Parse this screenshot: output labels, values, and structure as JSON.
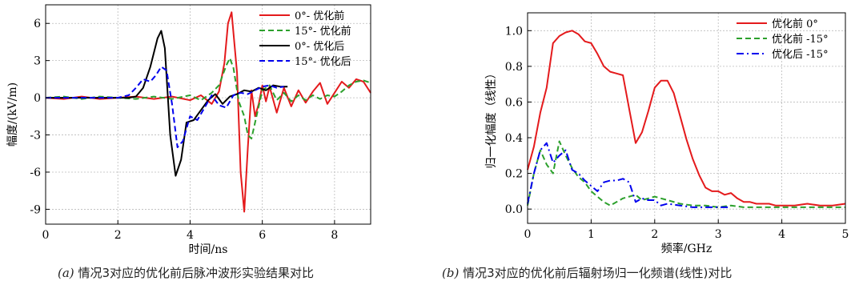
{
  "captions": {
    "a": {
      "tag": "(a)",
      "text": "情况3对应的优化前后脉冲波形实验结果对比"
    },
    "b": {
      "tag": "(b)",
      "text": "情况3对应的优化前后辐射场归一化频谱(线性)对比"
    }
  },
  "chart_data": [
    {
      "type": "line",
      "xlabel": "时间/ns",
      "ylabel": "幅度/(kV/m)",
      "xlim": [
        0,
        9
      ],
      "ylim": [
        -10.2,
        7.5
      ],
      "xticks": [
        0,
        2,
        4,
        6,
        8
      ],
      "yticks": [
        -9,
        -6,
        -3,
        0,
        3,
        6
      ],
      "grid": true,
      "legend": "top-right",
      "series": [
        {
          "name": "0°- 优化前",
          "color": "#e41a1c",
          "style": "solid",
          "x": [
            0,
            0.5,
            1.0,
            1.5,
            2.0,
            2.5,
            3.0,
            3.5,
            4.0,
            4.3,
            4.6,
            4.8,
            4.95,
            5.05,
            5.15,
            5.3,
            5.4,
            5.5,
            5.6,
            5.7,
            5.8,
            5.9,
            6.0,
            6.1,
            6.2,
            6.4,
            6.6,
            6.8,
            7.0,
            7.2,
            7.4,
            7.6,
            7.8,
            8.0,
            8.2,
            8.4,
            8.6,
            8.8,
            9.0
          ],
          "y": [
            0,
            -0.1,
            0.1,
            -0.1,
            0,
            0.1,
            -0.1,
            0.1,
            -0.2,
            0.2,
            -0.5,
            0.5,
            2.8,
            6.0,
            6.9,
            2.0,
            -6.0,
            -9.2,
            -4.0,
            0.6,
            -1.5,
            -0.5,
            1.0,
            -0.3,
            0.9,
            -1.2,
            0.8,
            -0.7,
            0.6,
            -0.4,
            0.5,
            1.2,
            -0.5,
            0.4,
            1.3,
            0.8,
            1.5,
            1.3,
            0.4
          ]
        },
        {
          "name": "15°- 优化前",
          "color": "#2ca02c",
          "style": "dashed",
          "x": [
            0,
            0.5,
            1.0,
            1.5,
            2.0,
            2.5,
            3.0,
            3.5,
            4.0,
            4.3,
            4.6,
            4.8,
            5.0,
            5.1,
            5.2,
            5.35,
            5.5,
            5.6,
            5.7,
            5.8,
            6.0,
            6.2,
            6.4,
            6.6,
            6.8,
            7.0,
            7.2,
            7.4,
            7.6,
            7.8,
            8.0,
            8.2,
            8.4,
            8.6,
            8.8,
            9.0
          ],
          "y": [
            0,
            0.1,
            -0.1,
            0.1,
            0,
            -0.1,
            0.1,
            -0.1,
            0.2,
            -0.2,
            0.4,
            1.0,
            2.6,
            3.2,
            2.4,
            -0.3,
            -1.5,
            -3.0,
            -3.3,
            -2.0,
            0.6,
            1.0,
            -0.2,
            0.4,
            -0.3,
            0.2,
            -0.2,
            0.2,
            -0.1,
            0.2,
            0.1,
            0.5,
            1.0,
            1.3,
            1.4,
            1.2
          ]
        },
        {
          "name": "0°- 优化后",
          "color": "#000000",
          "style": "solid",
          "x": [
            0,
            0.5,
            1.0,
            1.5,
            2.0,
            2.3,
            2.5,
            2.7,
            2.9,
            3.1,
            3.2,
            3.3,
            3.45,
            3.6,
            3.75,
            3.9,
            4.1,
            4.3,
            4.5,
            4.7,
            4.9,
            5.1,
            5.3,
            5.5,
            5.7,
            5.9,
            6.1,
            6.3,
            6.5,
            6.7
          ],
          "y": [
            0,
            0,
            0,
            0,
            0,
            0,
            0.1,
            0.8,
            2.5,
            4.8,
            5.4,
            4.0,
            -3.0,
            -6.3,
            -5.0,
            -2.0,
            -1.8,
            -1.0,
            -0.2,
            0.3,
            -0.5,
            0.1,
            0.3,
            0.6,
            0.5,
            0.8,
            0.6,
            1.0,
            0.9,
            0.9
          ]
        },
        {
          "name": "15°- 优化后",
          "color": "#0000ee",
          "style": "dashed",
          "x": [
            0,
            0.5,
            1.0,
            1.5,
            2.0,
            2.3,
            2.5,
            2.7,
            2.9,
            3.05,
            3.2,
            3.35,
            3.5,
            3.65,
            3.8,
            4.0,
            4.2,
            4.4,
            4.6,
            4.8,
            5.0,
            5.2,
            5.4,
            5.6,
            5.8,
            6.0,
            6.2,
            6.4,
            6.6
          ],
          "y": [
            0,
            0,
            0,
            0,
            0,
            0.2,
            0.8,
            1.5,
            1.3,
            1.8,
            2.5,
            2.2,
            -0.5,
            -4.0,
            -3.5,
            -1.5,
            -1.8,
            -0.8,
            0.2,
            -0.6,
            -0.8,
            0.2,
            0.4,
            0.3,
            0.6,
            0.9,
            1.0,
            0.8,
            0.9
          ]
        }
      ]
    },
    {
      "type": "line",
      "xlabel": "频率/GHz",
      "ylabel": "归一化幅度（线性）",
      "xlim": [
        0,
        5
      ],
      "ylim": [
        -0.08,
        1.1
      ],
      "xticks": [
        0,
        1,
        2,
        3,
        4,
        5
      ],
      "yticks": [
        0.0,
        0.2,
        0.4,
        0.6,
        0.8,
        1.0
      ],
      "grid": true,
      "legend": "top-right",
      "series": [
        {
          "name": "优化前 0°",
          "color": "#e41a1c",
          "style": "solid",
          "x": [
            0,
            0.1,
            0.2,
            0.3,
            0.4,
            0.5,
            0.6,
            0.7,
            0.8,
            0.9,
            1.0,
            1.1,
            1.2,
            1.3,
            1.4,
            1.5,
            1.6,
            1.7,
            1.8,
            1.9,
            2.0,
            2.1,
            2.2,
            2.3,
            2.4,
            2.5,
            2.6,
            2.7,
            2.8,
            2.9,
            3.0,
            3.1,
            3.2,
            3.3,
            3.4,
            3.5,
            3.6,
            3.7,
            3.8,
            3.9,
            4.0,
            4.2,
            4.4,
            4.6,
            4.8,
            5.0
          ],
          "y": [
            0.22,
            0.35,
            0.54,
            0.68,
            0.93,
            0.97,
            0.99,
            1.0,
            0.98,
            0.94,
            0.93,
            0.87,
            0.8,
            0.77,
            0.76,
            0.75,
            0.56,
            0.37,
            0.43,
            0.55,
            0.68,
            0.72,
            0.72,
            0.65,
            0.52,
            0.39,
            0.28,
            0.19,
            0.12,
            0.1,
            0.1,
            0.08,
            0.09,
            0.06,
            0.04,
            0.04,
            0.03,
            0.03,
            0.03,
            0.02,
            0.02,
            0.02,
            0.03,
            0.02,
            0.02,
            0.03
          ]
        },
        {
          "name": "优化前 -15°",
          "color": "#2ca02c",
          "style": "dashed",
          "x": [
            0,
            0.1,
            0.2,
            0.3,
            0.4,
            0.5,
            0.6,
            0.7,
            0.8,
            0.9,
            1.0,
            1.1,
            1.2,
            1.3,
            1.4,
            1.5,
            1.6,
            1.7,
            1.8,
            1.9,
            2.0,
            2.1,
            2.2,
            2.4,
            2.6,
            2.8,
            3.0,
            3.2,
            3.4,
            3.6,
            3.8,
            4.0,
            4.2,
            4.4,
            4.6,
            4.8,
            5.0
          ],
          "y": [
            0.02,
            0.2,
            0.33,
            0.25,
            0.2,
            0.38,
            0.3,
            0.23,
            0.18,
            0.15,
            0.1,
            0.07,
            0.04,
            0.02,
            0.04,
            0.06,
            0.07,
            0.08,
            0.05,
            0.06,
            0.07,
            0.06,
            0.05,
            0.03,
            0.02,
            0.02,
            0.01,
            0.02,
            0.01,
            0.01,
            0.01,
            0.01,
            0.01,
            0.01,
            0.01,
            0.01,
            0.01
          ]
        },
        {
          "name": "优化后 -15°",
          "color": "#0000ee",
          "style": "dashdot",
          "x": [
            0,
            0.1,
            0.2,
            0.3,
            0.4,
            0.5,
            0.6,
            0.7,
            0.8,
            0.9,
            1.0,
            1.1,
            1.2,
            1.3,
            1.4,
            1.5,
            1.6,
            1.7,
            1.8,
            1.9,
            2.0,
            2.1,
            2.2,
            2.4,
            2.6,
            2.8,
            3.0,
            3.2
          ],
          "y": [
            0.03,
            0.2,
            0.33,
            0.37,
            0.26,
            0.3,
            0.33,
            0.22,
            0.2,
            0.16,
            0.13,
            0.1,
            0.15,
            0.16,
            0.16,
            0.17,
            0.15,
            0.04,
            0.06,
            0.05,
            0.05,
            0.02,
            0.03,
            0.02,
            0.01,
            0.01,
            0.01,
            0.01
          ]
        }
      ]
    }
  ]
}
